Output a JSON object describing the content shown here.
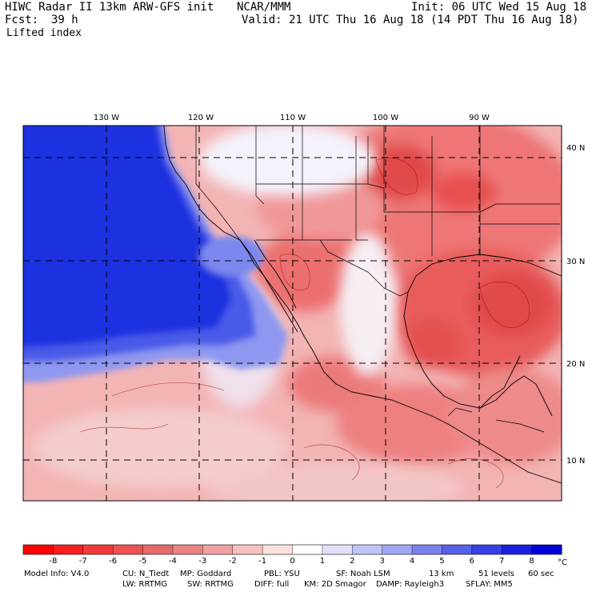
{
  "header": {
    "title_left": "HIWC Radar II 13km ARW-GFS init",
    "center": "NCAR/MMM",
    "init": "Init: 06 UTC Wed 15 Aug 18",
    "fcst_label": "Fcst:",
    "fcst_value": "39 h",
    "valid": "Valid: 21 UTC Thu 16 Aug 18 (14 PDT Thu 16 Aug 18)",
    "field": "Lifted index"
  },
  "map": {
    "lon_labels": [
      "130 W",
      "120 W",
      "110 W",
      "100 W",
      "90 W"
    ],
    "lat_labels": [
      "40 N",
      "30 N",
      "20 N",
      "10 N"
    ],
    "colors": {
      "ocean_cold": "#1a2fe0",
      "ocean_mid": "#6f7ff0",
      "neutral": "#f4f4fb",
      "warm_light": "#f6b8b8",
      "warm_mid": "#ef8080",
      "warm_strong": "#e04848"
    }
  },
  "colorbar": {
    "ticks": [
      "-8",
      "-7",
      "-6",
      "-5",
      "-4",
      "-3",
      "-2",
      "-1",
      "0",
      "1",
      "2",
      "3",
      "4",
      "5",
      "6",
      "7",
      "8"
    ],
    "unit": "°C",
    "colors": [
      "#ff0000",
      "#f81e1e",
      "#f23a3a",
      "#ec5252",
      "#e66a6a",
      "#e98484",
      "#f0a0a0",
      "#f6c0c0",
      "#fce0e0",
      "#ffffff",
      "#e0e0fb",
      "#c0c4f6",
      "#a0a6f2",
      "#7a82ee",
      "#5660e8",
      "#3640e4",
      "#1a20de",
      "#0000d8"
    ]
  },
  "footer": {
    "line1": [
      "Model Info: V4.0",
      "CU: N_Tiedt",
      "MP: Goddard",
      "PBL: YSU",
      "SF: Noah LSM",
      "13 km",
      "51 levels",
      "60 sec"
    ],
    "line2": [
      "LW: RRTMG",
      "SW: RRTMG",
      "DIFF: full",
      "KM: 2D Smagor",
      "DAMP: Rayleigh3",
      "SFLAY: MM5"
    ]
  }
}
